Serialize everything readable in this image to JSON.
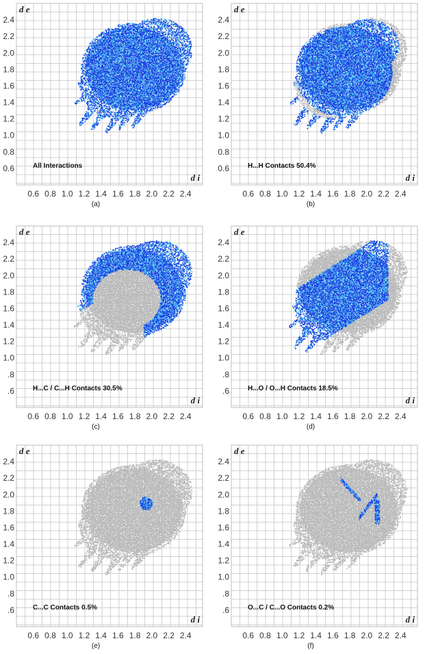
{
  "chart_data": [
    {
      "type": "scatter",
      "panel_label": "(a)",
      "caption": "All Interactions",
      "xlabel": "d i",
      "ylabel": "d e",
      "xticks": [
        "0.6",
        "0.8",
        "1.0",
        "1.2",
        "1.4",
        "1.6",
        "1.8",
        "2.0",
        "2.2",
        "2.4"
      ],
      "yticks": [
        "2.4",
        "2.2",
        "2.0",
        "1.8",
        "1.6",
        "1.4",
        "1.2",
        "1.0",
        "0.8",
        "0.6"
      ],
      "xlim": [
        0.4,
        2.6
      ],
      "ylim": [
        0.4,
        2.6
      ],
      "grid": true,
      "highlight": "full",
      "highlight_color": "#1540e0"
    },
    {
      "type": "scatter",
      "panel_label": "(b)",
      "caption": "H...H Contacts 50.4%",
      "xlabel": "d i",
      "ylabel": "d e",
      "xticks": [
        "0.6",
        "0.8",
        "1.0",
        "1.2",
        "1.4",
        "1.6",
        "1.8",
        "2.0",
        "2.2",
        "2.4"
      ],
      "yticks": [
        "2.4",
        "2.2",
        "2.0",
        "1.8",
        "1.6",
        "1.4",
        "1.2",
        "1.0",
        "0.8",
        "0.6"
      ],
      "xlim": [
        0.4,
        2.6
      ],
      "ylim": [
        0.4,
        2.6
      ],
      "grid": true,
      "highlight": "hh",
      "highlight_color": "#1540e0"
    },
    {
      "type": "scatter",
      "panel_label": "(c)",
      "caption": "H...C / C...H Contacts 30.5%",
      "xlabel": "d i",
      "ylabel": "d e",
      "xticks": [
        "0.6",
        "0.8",
        "1.0",
        "1.2",
        "1.4",
        "1.6",
        "1.8",
        "2.0",
        "2.2",
        "2.4"
      ],
      "yticks": [
        "2.4",
        "2.2",
        "2.0",
        "1.8",
        "1.6",
        "1.4",
        "1.2",
        "1.0",
        ".8",
        ".6"
      ],
      "xlim": [
        0.4,
        2.6
      ],
      "ylim": [
        0.4,
        2.6
      ],
      "grid": true,
      "highlight": "hc",
      "highlight_color": "#1540e0"
    },
    {
      "type": "scatter",
      "panel_label": "(d)",
      "caption": "H...O / O...H Contacts 18.5%",
      "xlabel": "d i",
      "ylabel": "d e",
      "xticks": [
        "0.6",
        "0.8",
        "1.0",
        "1.2",
        "1.4",
        "1.6",
        "1.8",
        "2.0",
        "2.2",
        "2.4"
      ],
      "yticks": [
        "2.4",
        "2.2",
        "2.0",
        "1.8",
        "1.6",
        "1.4",
        "1.2",
        "1.0",
        ".8",
        ".6"
      ],
      "xlim": [
        0.4,
        2.6
      ],
      "ylim": [
        0.4,
        2.6
      ],
      "grid": true,
      "highlight": "ho",
      "highlight_color": "#1540e0"
    },
    {
      "type": "scatter",
      "panel_label": "(e)",
      "caption": "C...C Contacts 0.5%",
      "xlabel": "d i",
      "ylabel": "d e",
      "xticks": [
        "0.6",
        "0.8",
        "1.0",
        "1.2",
        "1.4",
        "1.6",
        "1.8",
        "2.0",
        "2.2",
        "2.4"
      ],
      "yticks": [
        "2.4",
        "2.2",
        "2.0",
        "1.8",
        "1.6",
        "1.4",
        "1.2",
        "1.0",
        ".8",
        ".6"
      ],
      "xlim": [
        0.4,
        2.6
      ],
      "ylim": [
        0.4,
        2.6
      ],
      "grid": true,
      "highlight": "cc",
      "highlight_color": "#1540e0"
    },
    {
      "type": "scatter",
      "panel_label": "(f)",
      "caption": "O...C / C...O Contacts 0.2%",
      "xlabel": "d i",
      "ylabel": "d e",
      "xticks": [
        "0.6",
        "0.8",
        "1.0",
        "1.2",
        "1.4",
        "1.6",
        "1.8",
        "2.0",
        "2.2",
        "2.4"
      ],
      "yticks": [
        "2.4",
        "2.2",
        "2.0",
        "1.8",
        "1.6",
        "1.4",
        "1.2",
        "1.0",
        ".8",
        ".6"
      ],
      "xlim": [
        0.4,
        2.6
      ],
      "ylim": [
        0.4,
        2.6
      ],
      "grid": true,
      "highlight": "oc",
      "highlight_color": "#1540e0"
    }
  ],
  "background_color": "#b9b9b9"
}
